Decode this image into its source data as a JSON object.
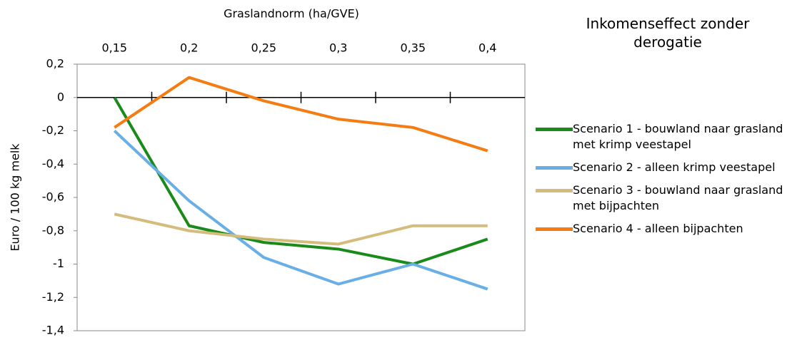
{
  "chart_data": {
    "type": "line",
    "title": "Inkomenseffect zonder derogatie",
    "x_label": "Graslandnorm (ha/GVE)",
    "y_label": "Euro / 100 kg melk",
    "categories": [
      "0,15",
      "0,2",
      "0,25",
      "0,3",
      "0,35",
      "0,4"
    ],
    "series": [
      {
        "name": "Scenario 1 - bouwland naar grasland met krimp veestapel",
        "color": "#1a8a1a",
        "values": [
          0,
          -0.77,
          -0.87,
          -0.91,
          -1.0,
          -0.85
        ]
      },
      {
        "name": "Scenario 2 - alleen krimp veestapel",
        "color": "#6aaee6",
        "values": [
          -0.2,
          -0.62,
          -0.96,
          -1.12,
          -1.0,
          -1.15
        ]
      },
      {
        "name": "Scenario 3 - bouwland naar grasland met bijpachten",
        "color": "#d4bc7c",
        "values": [
          -0.7,
          -0.8,
          -0.85,
          -0.88,
          -0.77,
          -0.77
        ]
      },
      {
        "name": "Scenario 4 - alleen bijpachten",
        "color": "#f57c12",
        "values": [
          -0.18,
          0.12,
          -0.02,
          -0.13,
          -0.18,
          -0.32
        ]
      }
    ],
    "ylim": [
      -1.4,
      0.2
    ],
    "yticks": [
      {
        "value": 0.2,
        "label": "0,2"
      },
      0,
      {
        "value": -0.2,
        "label": "-0,2"
      },
      {
        "value": -0.4,
        "label": "-0,4"
      },
      {
        "value": -0.6,
        "label": "-0,6"
      },
      {
        "value": -0.8,
        "label": "-0,8"
      },
      -1,
      {
        "value": -1.2,
        "label": "-1,2"
      },
      {
        "value": -1.4,
        "label": "-1,4"
      }
    ],
    "legend": "right",
    "grid": false
  }
}
